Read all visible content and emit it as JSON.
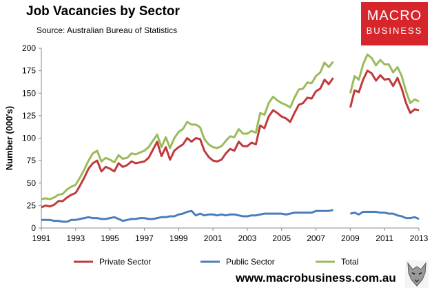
{
  "header": {
    "title": "Job Vacancies by Sector",
    "source": "Source: Australian Bureau of Statistics"
  },
  "brand": {
    "logo_line1": "MACRO",
    "logo_line2": "BUSINESS",
    "website": "www.macrobusiness.com.au",
    "logo_color": "#d7262b"
  },
  "chart_data": {
    "type": "line",
    "title": "Job Vacancies by Sector",
    "xlabel": "",
    "ylabel": "Number (000's)",
    "ylim": [
      0,
      200
    ],
    "xlim": [
      1991,
      2013
    ],
    "yticks": [
      0,
      25,
      50,
      75,
      100,
      125,
      150,
      175,
      200
    ],
    "xticks": [
      "1991",
      "1993",
      "1995",
      "1997",
      "1999",
      "2001",
      "2003",
      "2005",
      "2007",
      "2009",
      "2011",
      "2013"
    ],
    "x": [
      1991.0,
      1991.25,
      1991.5,
      1991.75,
      1992.0,
      1992.25,
      1992.5,
      1992.75,
      1993.0,
      1993.25,
      1993.5,
      1993.75,
      1994.0,
      1994.25,
      1994.5,
      1994.75,
      1995.0,
      1995.25,
      1995.5,
      1995.75,
      1996.0,
      1996.25,
      1996.5,
      1996.75,
      1997.0,
      1997.25,
      1997.5,
      1997.75,
      1998.0,
      1998.25,
      1998.5,
      1998.75,
      1999.0,
      1999.25,
      1999.5,
      1999.75,
      2000.0,
      2000.25,
      2000.5,
      2000.75,
      2001.0,
      2001.25,
      2001.5,
      2001.75,
      2002.0,
      2002.25,
      2002.5,
      2002.75,
      2003.0,
      2003.25,
      2003.5,
      2003.75,
      2004.0,
      2004.25,
      2004.5,
      2004.75,
      2005.0,
      2005.25,
      2005.5,
      2005.75,
      2006.0,
      2006.25,
      2006.5,
      2006.75,
      2007.0,
      2007.25,
      2007.5,
      2007.75,
      2008.0,
      2008.25,
      2008.5,
      2008.75,
      2009.0,
      2009.25,
      2009.5,
      2009.75,
      2010.0,
      2010.25,
      2010.5,
      2010.75,
      2011.0,
      2011.25,
      2011.5,
      2011.75,
      2012.0,
      2012.25,
      2012.5,
      2012.75,
      2013.0
    ],
    "series": [
      {
        "name": "Private Sector",
        "color": "#c0393b",
        "values": [
          23,
          25,
          24,
          26,
          30,
          30,
          34,
          37,
          39,
          47,
          56,
          66,
          72,
          75,
          63,
          68,
          66,
          63,
          72,
          68,
          70,
          74,
          72,
          73,
          74,
          78,
          87,
          96,
          80,
          90,
          76,
          86,
          90,
          93,
          100,
          96,
          100,
          99,
          86,
          79,
          75,
          74,
          76,
          83,
          88,
          86,
          96,
          91,
          91,
          95,
          93,
          114,
          111,
          124,
          131,
          128,
          124,
          122,
          118,
          128,
          137,
          139,
          145,
          144,
          152,
          155,
          165,
          160,
          167,
          null,
          null,
          null,
          134,
          153,
          151,
          165,
          175,
          172,
          164,
          170,
          165,
          166,
          158,
          167,
          155,
          139,
          128,
          132,
          131
        ]
      },
      {
        "name": "Public Sector",
        "color": "#4a7ebb",
        "values": [
          9,
          9,
          9,
          8,
          8,
          7,
          7,
          9,
          9,
          10,
          11,
          12,
          11,
          11,
          10,
          10,
          11,
          12,
          10,
          8,
          9,
          10,
          10,
          11,
          11,
          10,
          10,
          11,
          12,
          12,
          13,
          13,
          15,
          16,
          18,
          19,
          14,
          16,
          14,
          15,
          15,
          14,
          15,
          14,
          15,
          15,
          14,
          13,
          13,
          14,
          14,
          15,
          16,
          16,
          16,
          16,
          16,
          15,
          16,
          17,
          17,
          17,
          17,
          17,
          19,
          19,
          19,
          19,
          20,
          null,
          null,
          null,
          16,
          17,
          15,
          18,
          18,
          18,
          18,
          17,
          17,
          16,
          16,
          14,
          13,
          11,
          11,
          12,
          10
        ]
      },
      {
        "name": "Total",
        "color": "#9bbb59",
        "values": [
          32,
          33,
          32,
          34,
          37,
          38,
          43,
          46,
          48,
          56,
          65,
          75,
          83,
          86,
          74,
          78,
          76,
          73,
          81,
          77,
          78,
          83,
          82,
          84,
          86,
          90,
          97,
          104,
          90,
          101,
          89,
          100,
          107,
          110,
          118,
          115,
          115,
          112,
          99,
          93,
          90,
          89,
          91,
          97,
          102,
          101,
          110,
          105,
          105,
          108,
          106,
          128,
          126,
          139,
          146,
          142,
          139,
          137,
          134,
          145,
          154,
          155,
          162,
          161,
          169,
          173,
          184,
          179,
          185,
          null,
          null,
          null,
          150,
          169,
          165,
          182,
          193,
          189,
          181,
          187,
          182,
          182,
          173,
          179,
          169,
          152,
          139,
          143,
          141
        ]
      }
    ],
    "legend": "bottom"
  }
}
